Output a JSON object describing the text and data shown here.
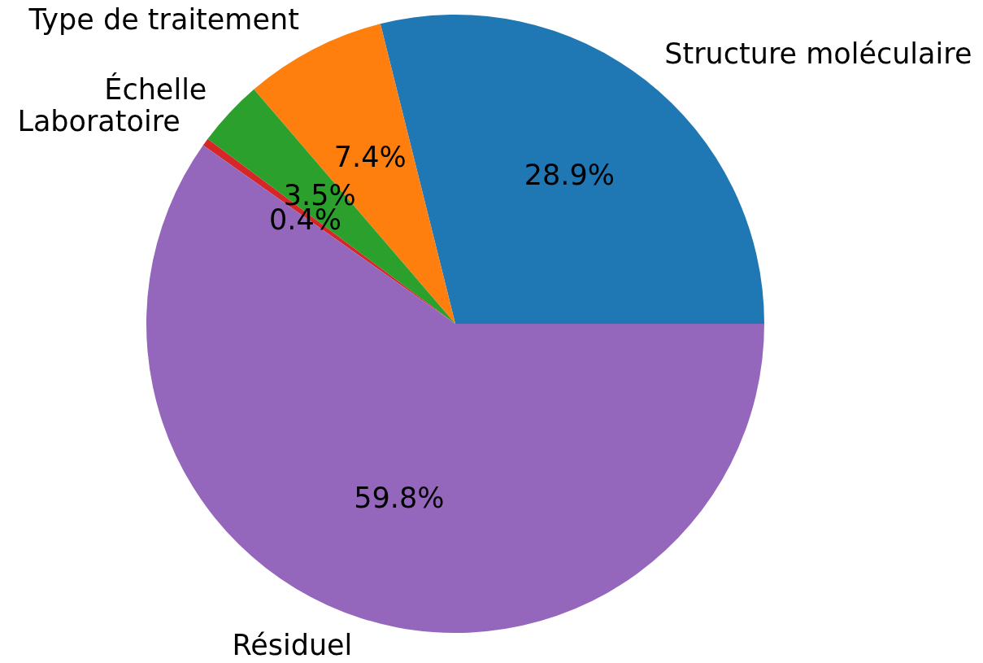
{
  "chart_data": {
    "type": "pie",
    "categories": [
      "Structure moléculaire",
      "Type de traitement",
      "Échelle",
      "Laboratoire",
      "Résiduel"
    ],
    "values": [
      28.9,
      7.4,
      3.5,
      0.4,
      59.8
    ],
    "colors": [
      "#1f77b4",
      "#ff7f0e",
      "#2ca02c",
      "#d62728",
      "#9467bd"
    ],
    "value_labels": [
      "28.9%",
      "7.4%",
      "3.5%",
      "0.4%",
      "59.8%"
    ]
  }
}
